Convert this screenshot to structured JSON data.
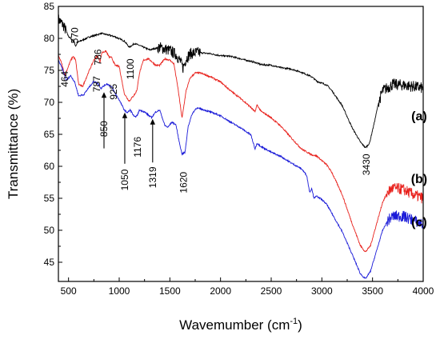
{
  "chart_data": {
    "type": "line",
    "title": "",
    "xlabel": "Wavemumber (cm",
    "xlabel_sup": "-1",
    "xlabel_close": ")",
    "ylabel": "Transmittance (%)",
    "xlim": [
      400,
      4000
    ],
    "ylim": [
      42,
      85
    ],
    "xticks": [
      500,
      1000,
      1500,
      2000,
      2500,
      3000,
      3500,
      4000
    ],
    "yticks": [
      45,
      50,
      55,
      60,
      65,
      70,
      75,
      80,
      85
    ],
    "grid": false,
    "series": [
      {
        "name": "(a)",
        "color": "#000000",
        "noisy_ranges": [
          [
            400,
            480
          ],
          [
            1380,
            1800
          ],
          [
            3560,
            4000
          ]
        ],
        "points": [
          [
            400,
            83
          ],
          [
            450,
            82
          ],
          [
            500,
            80.3
          ],
          [
            550,
            79.6
          ],
          [
            570,
            78.8
          ],
          [
            590,
            79.4
          ],
          [
            620,
            79.6
          ],
          [
            700,
            80.2
          ],
          [
            790,
            80.6
          ],
          [
            820,
            80.8
          ],
          [
            900,
            80.5
          ],
          [
            950,
            80.3
          ],
          [
            1050,
            79.6
          ],
          [
            1100,
            78.6
          ],
          [
            1150,
            79.2
          ],
          [
            1200,
            78.9
          ],
          [
            1300,
            78.2
          ],
          [
            1400,
            78.6
          ],
          [
            1500,
            78.1
          ],
          [
            1560,
            77.5
          ],
          [
            1600,
            76.5
          ],
          [
            1630,
            75.4
          ],
          [
            1660,
            76.8
          ],
          [
            1700,
            77.6
          ],
          [
            1780,
            77.8
          ],
          [
            1900,
            77.6
          ],
          [
            2000,
            77.3
          ],
          [
            2100,
            77.2
          ],
          [
            2200,
            76.8
          ],
          [
            2300,
            76.4
          ],
          [
            2350,
            76.2
          ],
          [
            2400,
            75.9
          ],
          [
            2500,
            75.8
          ],
          [
            2600,
            75.4
          ],
          [
            2700,
            75.2
          ],
          [
            2800,
            74.7
          ],
          [
            2900,
            74.0
          ],
          [
            2950,
            73.3
          ],
          [
            3000,
            73.0
          ],
          [
            3050,
            72.7
          ],
          [
            3100,
            71.8
          ],
          [
            3200,
            69.5
          ],
          [
            3300,
            66.0
          ],
          [
            3380,
            63.8
          ],
          [
            3430,
            62.9
          ],
          [
            3470,
            63.6
          ],
          [
            3520,
            67.0
          ],
          [
            3560,
            70.0
          ],
          [
            3600,
            71.8
          ],
          [
            3700,
            72.8
          ],
          [
            3800,
            72.7
          ],
          [
            3900,
            72.5
          ],
          [
            4000,
            72.2
          ]
        ]
      },
      {
        "name": "(b)",
        "color": "#e8211c",
        "noisy_ranges": [
          [
            3640,
            4000
          ]
        ],
        "points": [
          [
            400,
            77.3
          ],
          [
            430,
            76.2
          ],
          [
            464,
            74.2
          ],
          [
            520,
            76.5
          ],
          [
            545,
            77.2
          ],
          [
            570,
            76.6
          ],
          [
            600,
            72.8
          ],
          [
            640,
            72.5
          ],
          [
            700,
            74.8
          ],
          [
            750,
            76.6
          ],
          [
            786,
            77.3
          ],
          [
            810,
            76.3
          ],
          [
            830,
            77.8
          ],
          [
            870,
            78.0
          ],
          [
            900,
            77.1
          ],
          [
            925,
            77.0
          ],
          [
            960,
            75.8
          ],
          [
            1000,
            75.6
          ],
          [
            1050,
            71.4
          ],
          [
            1080,
            70.6
          ],
          [
            1100,
            70.2
          ],
          [
            1130,
            70.8
          ],
          [
            1160,
            71.4
          ],
          [
            1176,
            72.0
          ],
          [
            1200,
            74.6
          ],
          [
            1240,
            76.6
          ],
          [
            1290,
            76.8
          ],
          [
            1319,
            76.4
          ],
          [
            1360,
            75.8
          ],
          [
            1400,
            75.8
          ],
          [
            1450,
            76.8
          ],
          [
            1500,
            76.6
          ],
          [
            1540,
            76.0
          ],
          [
            1580,
            72.2
          ],
          [
            1620,
            67.5
          ],
          [
            1660,
            71.8
          ],
          [
            1700,
            73.8
          ],
          [
            1750,
            74.6
          ],
          [
            1800,
            74.6
          ],
          [
            1900,
            74.0
          ],
          [
            2000,
            73.2
          ],
          [
            2100,
            71.8
          ],
          [
            2200,
            70.6
          ],
          [
            2300,
            69.2
          ],
          [
            2340,
            68.5
          ],
          [
            2360,
            69.6
          ],
          [
            2400,
            68.6
          ],
          [
            2500,
            67.6
          ],
          [
            2600,
            66.2
          ],
          [
            2700,
            64.4
          ],
          [
            2800,
            62.7
          ],
          [
            2900,
            61.8
          ],
          [
            2950,
            61.6
          ],
          [
            3000,
            60.9
          ],
          [
            3050,
            60.2
          ],
          [
            3100,
            59.0
          ],
          [
            3200,
            55.6
          ],
          [
            3300,
            51.0
          ],
          [
            3380,
            47.6
          ],
          [
            3430,
            46.6
          ],
          [
            3480,
            47.6
          ],
          [
            3540,
            51.0
          ],
          [
            3600,
            54.4
          ],
          [
            3650,
            56.0
          ],
          [
            3700,
            56.6
          ],
          [
            3800,
            56.4
          ],
          [
            3900,
            55.6
          ],
          [
            4000,
            55.0
          ]
        ]
      },
      {
        "name": "(c)",
        "color": "#1a1ad8",
        "noisy_ranges": [
          [
            3640,
            4000
          ]
        ],
        "points": [
          [
            400,
            76.6
          ],
          [
            440,
            75.2
          ],
          [
            480,
            73.4
          ],
          [
            520,
            74.2
          ],
          [
            560,
            73.2
          ],
          [
            600,
            71.0
          ],
          [
            650,
            71.2
          ],
          [
            700,
            72.3
          ],
          [
            750,
            73.3
          ],
          [
            787,
            73.0
          ],
          [
            820,
            72.2
          ],
          [
            850,
            72.6
          ],
          [
            880,
            72.9
          ],
          [
            925,
            72.4
          ],
          [
            960,
            71.4
          ],
          [
            1000,
            70.4
          ],
          [
            1050,
            68.8
          ],
          [
            1080,
            68.4
          ],
          [
            1110,
            68.8
          ],
          [
            1150,
            67.7
          ],
          [
            1176,
            67.9
          ],
          [
            1200,
            68.8
          ],
          [
            1250,
            68.5
          ],
          [
            1319,
            67.6
          ],
          [
            1360,
            68.5
          ],
          [
            1400,
            68.8
          ],
          [
            1450,
            66.4
          ],
          [
            1480,
            66.1
          ],
          [
            1520,
            66.9
          ],
          [
            1560,
            66.5
          ],
          [
            1590,
            64.0
          ],
          [
            1620,
            61.9
          ],
          [
            1650,
            62.2
          ],
          [
            1680,
            66.2
          ],
          [
            1720,
            68.2
          ],
          [
            1760,
            69.1
          ],
          [
            1800,
            69.0
          ],
          [
            1900,
            68.5
          ],
          [
            2000,
            67.9
          ],
          [
            2100,
            66.9
          ],
          [
            2200,
            66.0
          ],
          [
            2300,
            64.9
          ],
          [
            2340,
            62.7
          ],
          [
            2360,
            63.6
          ],
          [
            2400,
            63.1
          ],
          [
            2500,
            62.2
          ],
          [
            2600,
            61.5
          ],
          [
            2700,
            60.5
          ],
          [
            2800,
            59.6
          ],
          [
            2850,
            58.6
          ],
          [
            2880,
            55.9
          ],
          [
            2900,
            56.6
          ],
          [
            2920,
            55.1
          ],
          [
            2950,
            55.3
          ],
          [
            3000,
            54.8
          ],
          [
            3050,
            54.0
          ],
          [
            3100,
            52.6
          ],
          [
            3200,
            49.8
          ],
          [
            3300,
            46.2
          ],
          [
            3380,
            43.2
          ],
          [
            3430,
            42.4
          ],
          [
            3480,
            43.6
          ],
          [
            3540,
            46.8
          ],
          [
            3600,
            50.0
          ],
          [
            3650,
            51.5
          ],
          [
            3700,
            52.2
          ],
          [
            3800,
            52.2
          ],
          [
            3900,
            51.6
          ],
          [
            4000,
            50.9
          ]
        ]
      }
    ],
    "series_labels": [
      {
        "text": "(a)",
        "at": [
          3960,
          67.2
        ]
      },
      {
        "text": "(b)",
        "at": [
          3960,
          57.4
        ]
      },
      {
        "text": "(c)",
        "at": [
          3960,
          50.6
        ]
      }
    ],
    "peak_labels": [
      {
        "text": "464",
        "at": [
          464,
          72.4
        ],
        "rotate": true
      },
      {
        "text": "570",
        "at": [
          560,
          79.2
        ],
        "rotate": true
      },
      {
        "text": "786",
        "at": [
          790,
          75.8
        ],
        "rotate": true
      },
      {
        "text": "787",
        "at": [
          780,
          71.6
        ],
        "rotate": true
      },
      {
        "text": "925",
        "at": [
          945,
          70.4
        ],
        "rotate": true
      },
      {
        "text": "1100",
        "at": [
          1110,
          73.6
        ],
        "rotate": true
      },
      {
        "text": "850",
        "at": [
          850,
          64.6
        ],
        "rotate": true,
        "arrow_to": [
          850,
          71.6
        ],
        "arrow_from": [
          850,
          62.8
        ]
      },
      {
        "text": "1050",
        "at": [
          1055,
          56.2
        ],
        "rotate": true,
        "arrow_to": [
          1055,
          68.4
        ],
        "arrow_from": [
          1055,
          60.4
        ]
      },
      {
        "text": "1176",
        "at": [
          1180,
          61.4
        ],
        "rotate": true
      },
      {
        "text": "1319",
        "at": [
          1330,
          56.6
        ],
        "rotate": true,
        "arrow_to": [
          1330,
          67.4
        ],
        "arrow_from": [
          1330,
          60.6
        ]
      },
      {
        "text": "1620",
        "at": [
          1635,
          55.8
        ],
        "rotate": true
      },
      {
        "text": "3430",
        "at": [
          3440,
          58.6
        ],
        "rotate": true
      }
    ]
  }
}
